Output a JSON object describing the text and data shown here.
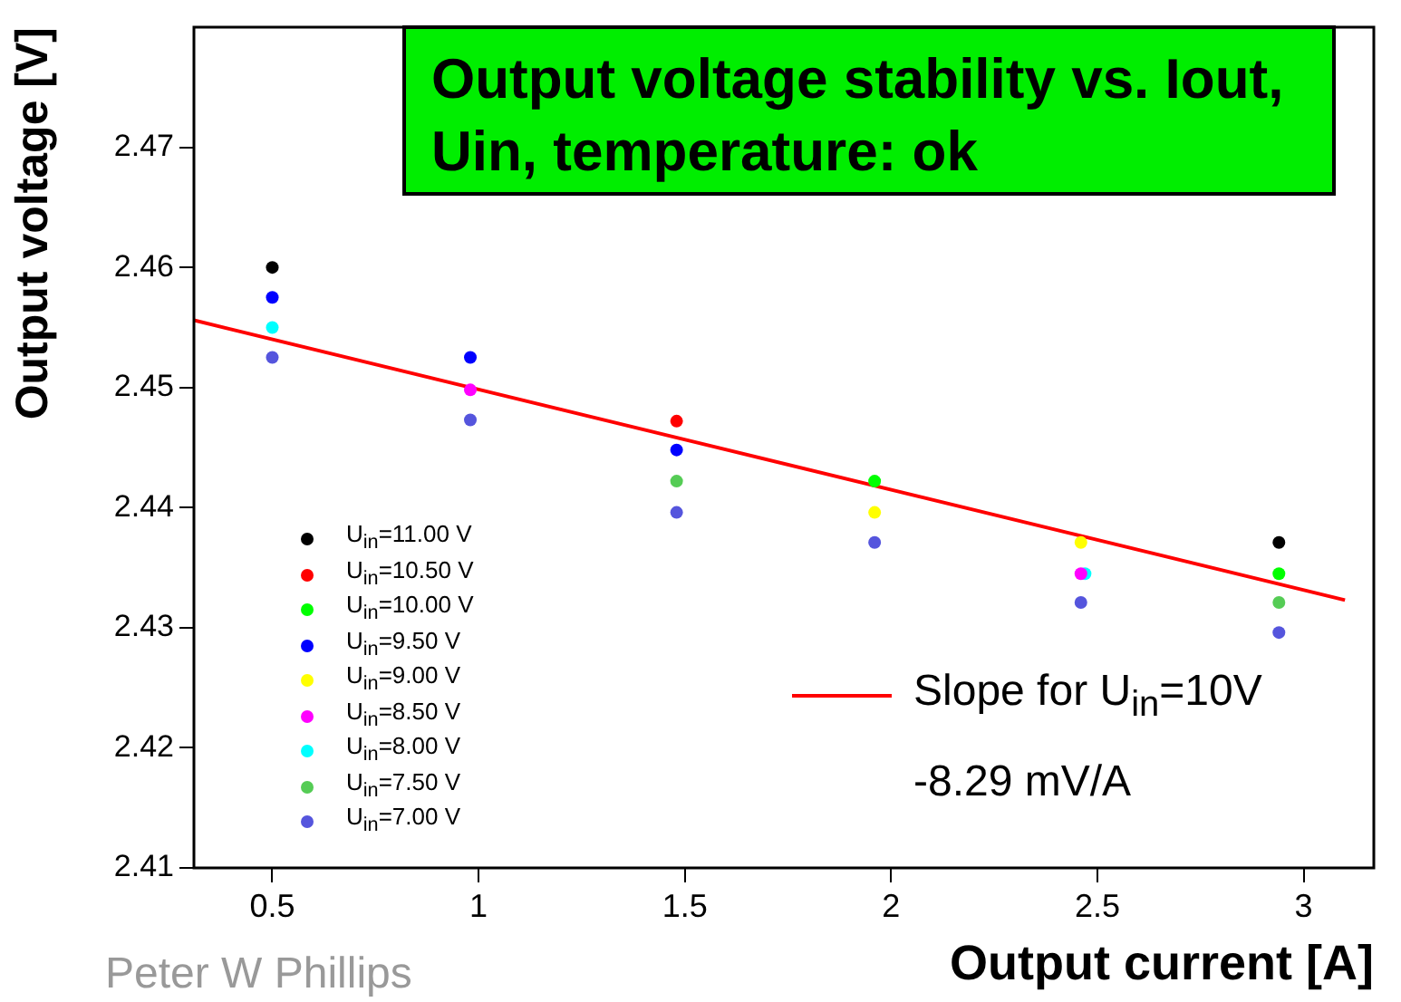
{
  "chart_data": {
    "type": "scatter",
    "title": "Output voltage stability vs. Iout, Uin, temperature: ok",
    "xlabel": "Output current [A]",
    "ylabel": "Output voltage [V]",
    "x": [
      0.5,
      0.98,
      1.48,
      1.96,
      2.46,
      2.94
    ],
    "series": [
      {
        "name": "U$_{in}$=11.00 V",
        "color": "#000000",
        "values": [
          2.46,
          null,
          null,
          null,
          null,
          2.4371
        ]
      },
      {
        "name": "U$_{in}$=10.50 V",
        "color": "#ff0000",
        "values": [
          null,
          null,
          2.4472,
          null,
          null,
          null
        ]
      },
      {
        "name": "U$_{in}$=10.00 V",
        "color": "#00ff00",
        "values": [
          null,
          null,
          null,
          2.4422,
          null,
          2.4345
        ]
      },
      {
        "name": "U$_{in}$=9.50 V",
        "color": "#0000ff",
        "values": [
          2.4575,
          2.4525,
          2.4448,
          null,
          null,
          null
        ]
      },
      {
        "name": "U$_{in}$=9.00 V",
        "color": "#ffff00",
        "values": [
          null,
          null,
          null,
          2.4396,
          2.4371,
          null
        ]
      },
      {
        "name": "U$_{in}$=8.50 V",
        "color": "#ff00ff",
        "values": [
          null,
          2.4498,
          null,
          null,
          2.4345,
          null
        ]
      },
      {
        "name": "U$_{in}$=8.00 V",
        "color": "#00ffff",
        "x": [
          0.5,
          null,
          null,
          null,
          2.47,
          null
        ],
        "values": [
          2.455,
          null,
          null,
          null,
          2.4345,
          null
        ]
      },
      {
        "name": "U$_{in}$=7.50 V",
        "color": "#55cc55",
        "values": [
          null,
          null,
          2.4422,
          null,
          null,
          2.4321
        ]
      },
      {
        "name": "U$_{in}$=7.00 V",
        "color": "#5555dd",
        "values": [
          2.4525,
          2.4473,
          2.4396,
          2.4371,
          2.4321,
          2.4296
        ]
      },
      {
        "name": "Slope for U$_{in}$=10V",
        "type": "line",
        "marker": "none",
        "color": "#ff0000",
        "x": [
          0.31,
          3.1
        ],
        "values": [
          2.4556,
          2.4323
        ]
      }
    ],
    "xlim": [
      0.31,
      3.17
    ],
    "xticks": [
      0.5,
      1,
      1.5,
      2,
      2.5,
      3
    ],
    "ylim": [
      2.41,
      2.48
    ],
    "yticks": [
      2.41,
      2.42,
      2.43,
      2.44,
      2.45,
      2.46,
      2.47
    ],
    "grid": false,
    "legend": "bottom left",
    "marker": "circle",
    "annotations": [
      "-8.29 mV/A",
      "Peter W Phillips"
    ]
  }
}
